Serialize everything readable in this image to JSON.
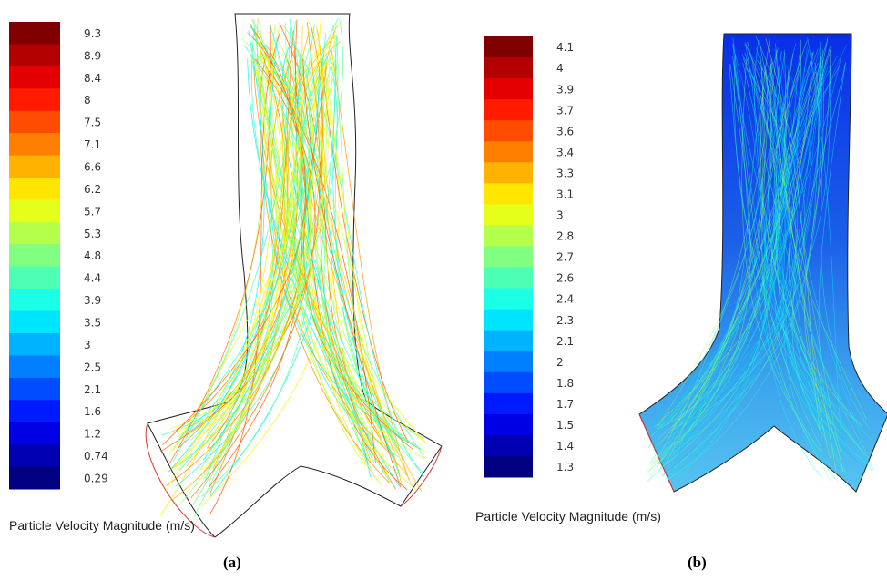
{
  "panels": [
    {
      "colorbar": {
        "ticks": [
          9.3,
          8.9,
          8.4,
          8,
          7.5,
          7.1,
          6.6,
          6.2,
          5.7,
          5.3,
          4.8,
          4.4,
          3.9,
          3.5,
          3,
          2.5,
          2.1,
          1.6,
          1.2,
          0.74,
          0.29
        ]
      },
      "label": "Particle Velocity Magnitude (m/s)",
      "caption": "(a)"
    },
    {
      "colorbar": {
        "ticks": [
          4.1,
          4,
          3.9,
          3.7,
          3.6,
          3.4,
          3.3,
          3.1,
          3,
          2.8,
          2.7,
          2.6,
          2.4,
          2.3,
          2.1,
          2,
          1.8,
          1.7,
          1.5,
          1.4,
          1.3
        ]
      },
      "label": "Particle Velocity Magnitude (m/s)",
      "caption": "(b)"
    }
  ]
}
